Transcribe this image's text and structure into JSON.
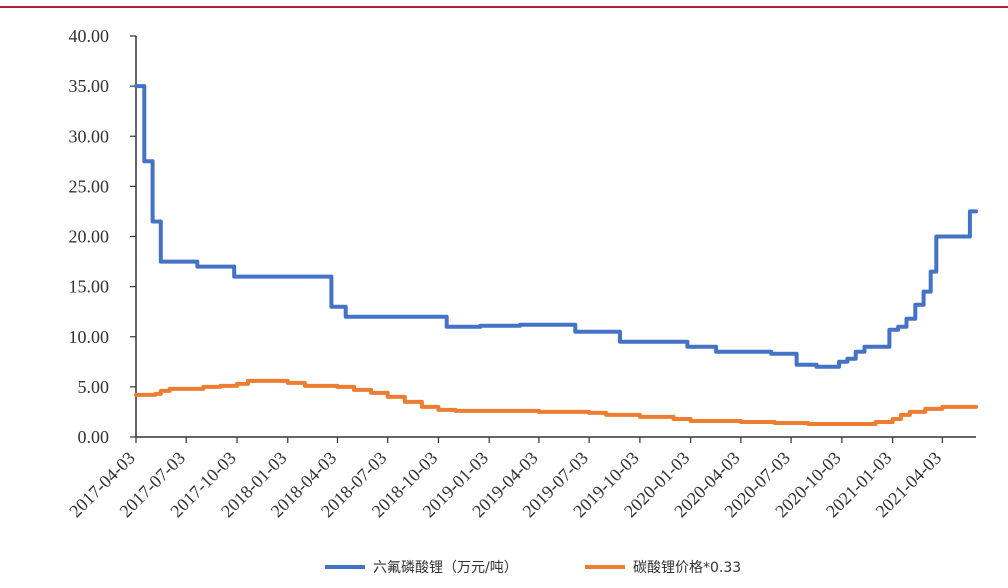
{
  "chart_data": {
    "type": "line",
    "title": "",
    "xlabel": "",
    "ylabel": "",
    "ylim": [
      0,
      40
    ],
    "yticks": [
      "0.00",
      "5.00",
      "10.00",
      "15.00",
      "20.00",
      "25.00",
      "30.00",
      "35.00",
      "40.00"
    ],
    "xticks": [
      "2017-04-03",
      "2017-07-03",
      "2017-10-03",
      "2018-01-03",
      "2018-04-03",
      "2018-07-03",
      "2018-10-03",
      "2019-01-03",
      "2019-04-03",
      "2019-07-03",
      "2019-10-03",
      "2020-01-03",
      "2020-04-03",
      "2020-07-03",
      "2020-10-03",
      "2021-01-03",
      "2021-04-03"
    ],
    "grid": false,
    "legend_position": "bottom",
    "series": [
      {
        "name": "六氟磷酸锂（万元/吨）",
        "color": "#4472c4",
        "step": true,
        "points": [
          [
            "2017-04-03",
            35.0
          ],
          [
            "2017-04-18",
            27.5
          ],
          [
            "2017-05-03",
            21.5
          ],
          [
            "2017-05-18",
            17.5
          ],
          [
            "2017-07-08",
            17.5
          ],
          [
            "2017-07-23",
            17.0
          ],
          [
            "2017-09-08",
            17.0
          ],
          [
            "2017-09-28",
            16.0
          ],
          [
            "2018-03-08",
            16.0
          ],
          [
            "2018-03-23",
            13.0
          ],
          [
            "2018-04-18",
            12.0
          ],
          [
            "2018-09-28",
            12.0
          ],
          [
            "2018-10-18",
            11.0
          ],
          [
            "2018-12-03",
            11.0
          ],
          [
            "2018-12-18",
            11.1
          ],
          [
            "2019-02-18",
            11.1
          ],
          [
            "2019-02-28",
            11.2
          ],
          [
            "2019-05-28",
            11.2
          ],
          [
            "2019-06-08",
            10.5
          ],
          [
            "2019-08-18",
            10.5
          ],
          [
            "2019-08-28",
            9.5
          ],
          [
            "2019-12-18",
            9.5
          ],
          [
            "2019-12-28",
            9.0
          ],
          [
            "2020-02-08",
            9.0
          ],
          [
            "2020-02-18",
            8.5
          ],
          [
            "2020-05-18",
            8.5
          ],
          [
            "2020-05-28",
            8.3
          ],
          [
            "2020-07-03",
            8.3
          ],
          [
            "2020-07-13",
            7.2
          ],
          [
            "2020-08-08",
            7.2
          ],
          [
            "2020-08-18",
            7.0
          ],
          [
            "2020-09-18",
            7.0
          ],
          [
            "2020-09-28",
            7.5
          ],
          [
            "2020-10-13",
            7.8
          ],
          [
            "2020-10-28",
            8.5
          ],
          [
            "2020-11-13",
            9.0
          ],
          [
            "2020-12-18",
            9.0
          ],
          [
            "2020-12-28",
            10.7
          ],
          [
            "2021-01-13",
            11.0
          ],
          [
            "2021-01-28",
            11.8
          ],
          [
            "2021-02-13",
            13.2
          ],
          [
            "2021-02-28",
            14.5
          ],
          [
            "2021-03-13",
            16.5
          ],
          [
            "2021-03-23",
            20.0
          ],
          [
            "2021-05-18",
            20.0
          ],
          [
            "2021-05-23",
            22.5
          ],
          [
            "2021-06-03",
            22.5
          ]
        ]
      },
      {
        "name": "碳酸锂价格*0.33",
        "color": "#ed7d31",
        "step": true,
        "points": [
          [
            "2017-04-03",
            4.2
          ],
          [
            "2017-05-08",
            4.3
          ],
          [
            "2017-05-18",
            4.6
          ],
          [
            "2017-06-03",
            4.8
          ],
          [
            "2017-07-03",
            4.8
          ],
          [
            "2017-08-03",
            5.0
          ],
          [
            "2017-09-03",
            5.1
          ],
          [
            "2017-10-03",
            5.3
          ],
          [
            "2017-10-23",
            5.6
          ],
          [
            "2017-12-03",
            5.6
          ],
          [
            "2018-01-03",
            5.4
          ],
          [
            "2018-02-03",
            5.1
          ],
          [
            "2018-04-03",
            5.0
          ],
          [
            "2018-05-03",
            4.7
          ],
          [
            "2018-06-03",
            4.4
          ],
          [
            "2018-07-03",
            4.0
          ],
          [
            "2018-08-03",
            3.5
          ],
          [
            "2018-09-03",
            3.0
          ],
          [
            "2018-10-03",
            2.7
          ],
          [
            "2018-11-03",
            2.6
          ],
          [
            "2019-03-03",
            2.6
          ],
          [
            "2019-04-03",
            2.5
          ],
          [
            "2019-07-03",
            2.4
          ],
          [
            "2019-08-03",
            2.2
          ],
          [
            "2019-10-03",
            2.0
          ],
          [
            "2019-12-03",
            1.8
          ],
          [
            "2020-01-03",
            1.6
          ],
          [
            "2020-04-03",
            1.5
          ],
          [
            "2020-06-03",
            1.4
          ],
          [
            "2020-08-03",
            1.3
          ],
          [
            "2020-11-03",
            1.3
          ],
          [
            "2020-12-03",
            1.5
          ],
          [
            "2021-01-03",
            1.8
          ],
          [
            "2021-01-18",
            2.2
          ],
          [
            "2021-02-03",
            2.5
          ],
          [
            "2021-03-03",
            2.8
          ],
          [
            "2021-04-03",
            3.0
          ],
          [
            "2021-06-03",
            3.0
          ]
        ]
      }
    ]
  }
}
